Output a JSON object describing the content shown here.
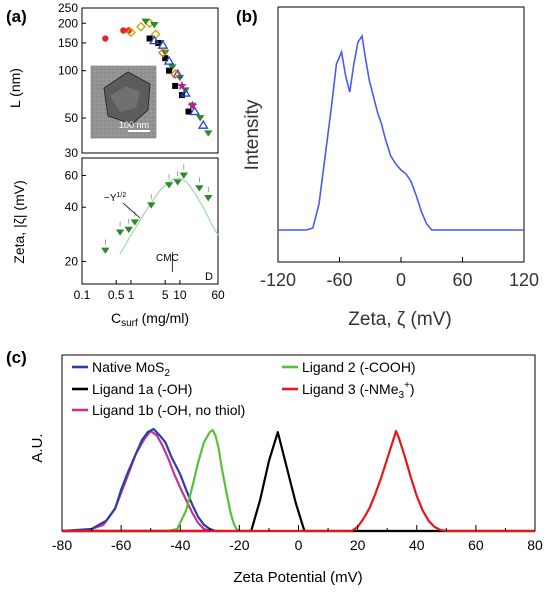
{
  "panel_labels": {
    "a": "(a)",
    "b": "(b)",
    "c": "(c)"
  },
  "chart_data": [
    {
      "id": "a-top",
      "type": "scatter",
      "ylabel": "L (nm)",
      "xscale": "log",
      "yscale": "log",
      "xlim": [
        0.1,
        60
      ],
      "ylim": [
        30,
        250
      ],
      "ytick_labels": [
        "250",
        "200",
        "150",
        "100",
        "50",
        "30"
      ],
      "ytick_values": [
        250,
        200,
        150,
        100,
        50,
        30
      ],
      "inset": {
        "scale_bar": "100 nm"
      },
      "series": [
        {
          "marker": "red-circle",
          "color": "#e8262a",
          "x": [
            0.3,
            0.7,
            0.9
          ],
          "y": [
            160,
            180,
            180
          ]
        },
        {
          "marker": "yellow-diamond",
          "color": "#c6a500",
          "x": [
            1.0,
            1.6,
            2.4,
            3.2
          ],
          "y": [
            175,
            190,
            200,
            170
          ]
        },
        {
          "marker": "green-triangle-down",
          "color": "#2c8a2c",
          "x": [
            2.0,
            3.0,
            4.0,
            5.0,
            7.0,
            10,
            13,
            18,
            26,
            38
          ],
          "y": [
            205,
            195,
            150,
            130,
            105,
            90,
            75,
            60,
            50,
            40
          ]
        },
        {
          "marker": "black-square",
          "color": "#000000",
          "x": [
            2.4,
            3.6,
            5.0,
            6.0,
            8.0,
            11,
            15
          ],
          "y": [
            160,
            150,
            120,
            100,
            80,
            70,
            55
          ]
        },
        {
          "marker": "blue-triangle-open",
          "color": "#2a3fd6",
          "x": [
            3.0,
            4.5,
            6.0,
            9.0,
            13,
            20,
            30
          ],
          "y": [
            155,
            145,
            115,
            95,
            72,
            55,
            45
          ]
        },
        {
          "marker": "magenta-star",
          "color": "#c0179c",
          "x": [
            11,
            18
          ],
          "y": [
            80,
            60
          ]
        },
        {
          "marker": "orange-diamond",
          "color": "#e07b00",
          "x": [
            4.5,
            8.0
          ],
          "y": [
            130,
            95
          ]
        }
      ]
    },
    {
      "id": "a-bottom",
      "type": "scatter",
      "xlabel_main": "C",
      "xlabel_sub": "surf",
      "xlabel_units": " (mg/ml)",
      "ylabel": "Zeta, |ζ| (mV)",
      "xscale": "log",
      "yscale": "log",
      "xlim": [
        0.1,
        60
      ],
      "ylim": [
        15,
        75
      ],
      "xtick_labels": [
        "0.1",
        "0.5",
        "1",
        "5",
        "10",
        "60"
      ],
      "xtick_values": [
        0.1,
        0.5,
        1,
        5,
        10,
        60
      ],
      "ytick_labels": [
        "60",
        "40",
        "20"
      ],
      "ytick_values": [
        60,
        40,
        20
      ],
      "annotations": {
        "fit": "~Y",
        "fit_sup": "1/2",
        "cmc": "CMC",
        "corner": "D"
      },
      "points": {
        "x": [
          0.3,
          0.6,
          0.9,
          1.2,
          2.6,
          6.0,
          9.0,
          12,
          25,
          38
        ],
        "y": [
          23,
          29,
          30,
          33,
          41,
          53,
          55,
          60,
          51,
          45
        ]
      },
      "fit_curve": {
        "x": [
          0.6,
          1.0,
          2.0,
          4.0,
          7.0,
          10,
          14,
          20,
          30,
          45,
          60
        ],
        "y": [
          22,
          28,
          38,
          50,
          57,
          58,
          55,
          48,
          40,
          32,
          28
        ]
      },
      "cmc_x": 7
    },
    {
      "id": "b",
      "type": "line",
      "xlabel": "Zeta, ζ (mV)",
      "ylabel": "Intensity",
      "xlim": [
        -120,
        120
      ],
      "xtick_labels": [
        "-120",
        "-60",
        "0",
        "60",
        "120"
      ],
      "xtick_values": [
        -120,
        -60,
        0,
        60,
        120
      ],
      "color": "#4a5cf0",
      "x": [
        -120,
        -92,
        -86,
        -80,
        -74,
        -68,
        -63,
        -58,
        -54,
        -50,
        -46,
        -42,
        -38,
        -35,
        -31,
        -27,
        -23,
        -19,
        -15,
        -10,
        -5,
        0,
        5,
        10,
        15,
        20,
        25,
        30,
        38,
        120
      ],
      "y": [
        0.03,
        0.03,
        0.04,
        0.16,
        0.4,
        0.64,
        0.86,
        0.92,
        0.8,
        0.72,
        0.86,
        0.97,
        1.0,
        0.9,
        0.78,
        0.7,
        0.62,
        0.56,
        0.48,
        0.4,
        0.36,
        0.33,
        0.31,
        0.27,
        0.2,
        0.12,
        0.06,
        0.03,
        0.03,
        0.03
      ]
    },
    {
      "id": "c",
      "type": "line",
      "xlabel": "Zeta Potential (mV)",
      "ylabel": "A.U.",
      "xlim": [
        -80,
        80
      ],
      "xtick_labels": [
        "-80",
        "-60",
        "-40",
        "-20",
        "0",
        "20",
        "40",
        "60",
        "80"
      ],
      "xtick_values": [
        -80,
        -60,
        -40,
        -20,
        0,
        20,
        40,
        60,
        80
      ],
      "legend": [
        {
          "name": "Native MoS",
          "sub": "2",
          "sup": "",
          "tail": "",
          "color": "#2b3fa8"
        },
        {
          "name": "Ligand 1a (-OH)",
          "sub": "",
          "sup": "",
          "tail": "",
          "color": "#000000"
        },
        {
          "name": "Ligand 1b (-OH, no thiol)",
          "sub": "",
          "sup": "",
          "tail": "",
          "color": "#c0349a"
        },
        {
          "name": "Ligand 2 (-COOH)",
          "sub": "",
          "sup": "",
          "tail": "",
          "color": "#58c13a"
        },
        {
          "name": "Ligand 3 (-NMe",
          "sub": "3",
          "sup": "+",
          "tail": ")",
          "color": "#e8141e"
        }
      ],
      "series": [
        {
          "name": "Ligand 1b",
          "color": "#c0349a",
          "x": [
            -80,
            -72,
            -66,
            -62,
            -58,
            -55,
            -52,
            -50,
            -48,
            -46,
            -44,
            -42,
            -40,
            -38,
            -36,
            -34,
            -32,
            -30,
            -80
          ],
          "y": [
            0,
            0,
            0.06,
            0.22,
            0.52,
            0.75,
            0.9,
            0.97,
            0.93,
            0.83,
            0.7,
            0.55,
            0.42,
            0.3,
            0.18,
            0.08,
            0.02,
            0,
            0
          ]
        },
        {
          "name": "Native MoS2",
          "color": "#2b3fa8",
          "x": [
            -80,
            -70,
            -65,
            -62,
            -60,
            -58,
            -55,
            -53,
            -51,
            -49,
            -47,
            -45,
            -43,
            -40,
            -38,
            -36,
            -34,
            -32,
            -30,
            -28,
            -26
          ],
          "y": [
            0,
            0.02,
            0.1,
            0.22,
            0.4,
            0.55,
            0.75,
            0.88,
            0.96,
            0.99,
            0.93,
            0.86,
            0.72,
            0.55,
            0.4,
            0.26,
            0.14,
            0.06,
            0.02,
            0,
            0
          ]
        },
        {
          "name": "Ligand 2",
          "color": "#58c13a",
          "x": [
            -80,
            -44,
            -41,
            -38,
            -36,
            -34,
            -32,
            -30,
            -29,
            -28,
            -27,
            -26,
            -24,
            -23,
            -22,
            -21,
            -20,
            80
          ],
          "y": [
            0,
            0,
            0.02,
            0.2,
            0.42,
            0.66,
            0.86,
            0.96,
            0.98,
            0.92,
            0.8,
            0.62,
            0.32,
            0.18,
            0.08,
            0.02,
            0,
            0
          ]
        },
        {
          "name": "Ligand 1a",
          "color": "#000000",
          "x": [
            -80,
            -16,
            -13,
            -10,
            -7,
            -4,
            -1,
            2,
            80
          ],
          "y": [
            0,
            0,
            0.3,
            0.68,
            0.96,
            0.62,
            0.28,
            0,
            0
          ]
        },
        {
          "name": "Ligand 3",
          "color": "#e8141e",
          "x": [
            -80,
            18,
            20,
            22,
            24,
            26,
            28,
            30,
            32,
            33,
            34,
            36,
            38,
            40,
            42,
            44,
            46,
            48,
            50,
            80
          ],
          "y": [
            0,
            0,
            0.04,
            0.12,
            0.22,
            0.36,
            0.52,
            0.7,
            0.88,
            0.97,
            0.9,
            0.72,
            0.52,
            0.34,
            0.2,
            0.1,
            0.04,
            0.01,
            0,
            0
          ]
        }
      ]
    }
  ]
}
